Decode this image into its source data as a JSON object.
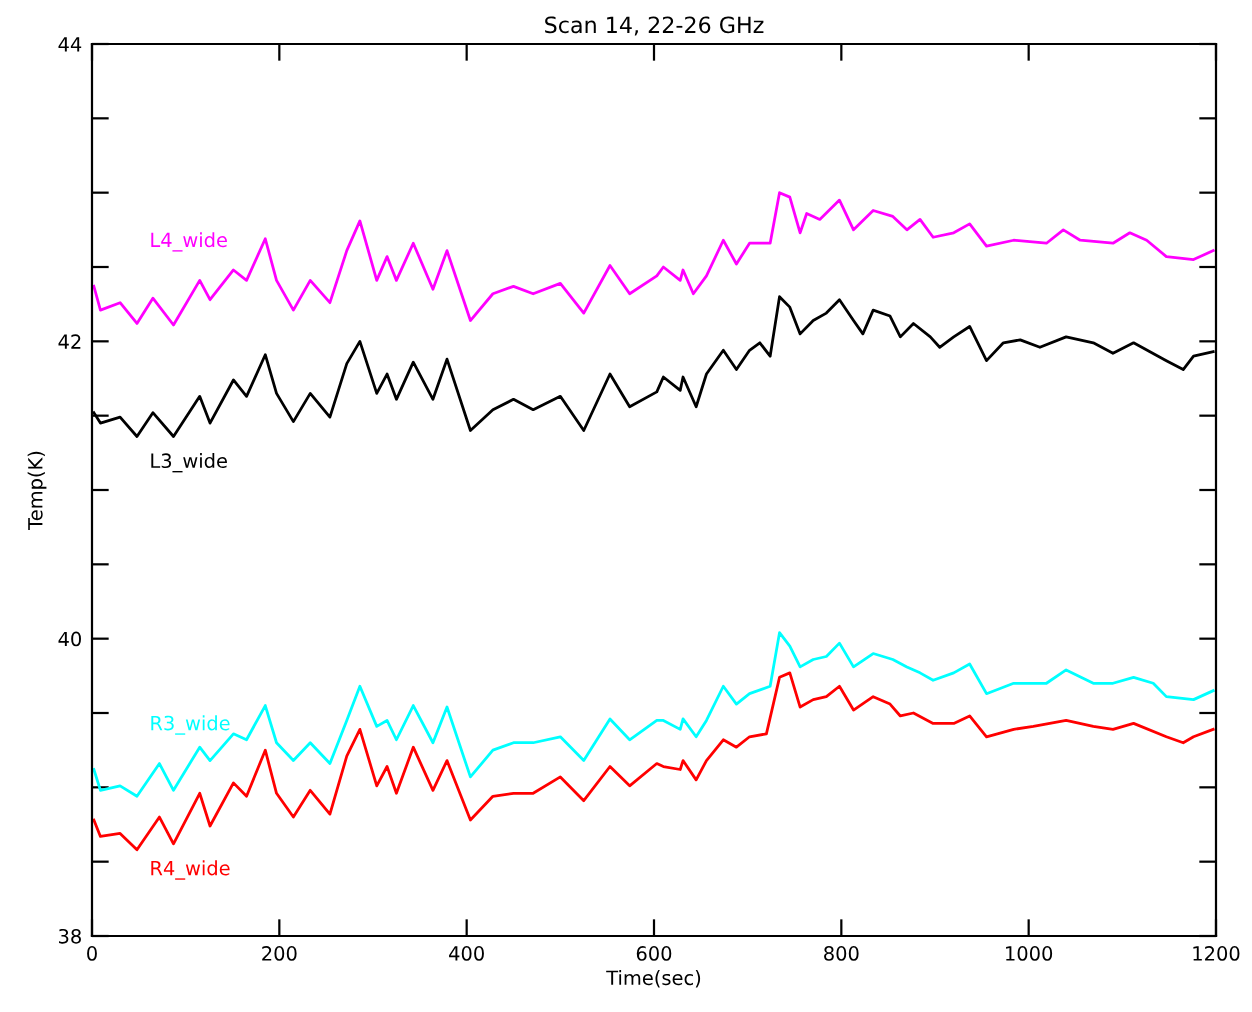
{
  "chart_data": {
    "type": "line",
    "title": "Scan 14, 22-26 GHz",
    "xlabel": "Time(sec)",
    "ylabel": "Temp(K)",
    "xlim": [
      0,
      1200
    ],
    "xticks": [
      0,
      200,
      400,
      600,
      800,
      1000,
      1200
    ],
    "ylim": [
      38,
      44
    ],
    "yticks": [
      38,
      {
        "value": 38.5,
        "label": null
      },
      {
        "value": 39,
        "label": null
      },
      {
        "value": 39.5,
        "label": null
      },
      40,
      {
        "value": 40.5,
        "label": null
      },
      {
        "value": 41,
        "label": null
      },
      {
        "value": 41.5,
        "label": null
      },
      42,
      {
        "value": 42.5,
        "label": null
      },
      {
        "value": 43,
        "label": null
      },
      {
        "value": 43.5,
        "label": null
      },
      44
    ],
    "grid": false,
    "legend": false,
    "marker": "none",
    "line_style": "solid",
    "series": [
      {
        "name": "L4_wide",
        "color": "#ff00ff",
        "x": [
          2,
          9,
          30,
          48,
          65,
          87,
          115,
          126,
          151,
          165,
          185,
          197,
          215,
          233,
          254,
          272,
          286,
          304,
          315,
          325,
          343,
          364,
          379,
          404,
          428,
          450,
          471,
          500,
          525,
          553,
          574,
          603,
          610,
          628,
          631,
          642,
          656,
          674,
          688,
          702,
          724,
          734,
          745,
          756,
          763,
          777,
          798,
          813,
          834,
          855,
          870,
          884,
          898,
          920,
          937,
          955,
          984,
          1019,
          1037,
          1055,
          1090,
          1108,
          1126,
          1147,
          1176,
          1197
        ],
        "values": [
          42.37,
          42.21,
          42.26,
          42.12,
          42.29,
          42.11,
          42.41,
          42.28,
          42.48,
          42.41,
          42.69,
          42.41,
          42.21,
          42.41,
          42.26,
          42.61,
          42.81,
          42.41,
          42.57,
          42.41,
          42.66,
          42.35,
          42.61,
          42.14,
          42.32,
          42.37,
          42.32,
          42.39,
          42.19,
          42.51,
          42.32,
          42.44,
          42.5,
          42.41,
          42.48,
          42.32,
          42.44,
          42.68,
          42.52,
          42.66,
          42.66,
          43.0,
          42.97,
          42.73,
          42.86,
          42.82,
          42.95,
          42.75,
          42.88,
          42.84,
          42.75,
          42.82,
          42.7,
          42.73,
          42.79,
          42.64,
          42.68,
          42.66,
          42.75,
          42.68,
          42.66,
          42.73,
          42.68,
          42.57,
          42.55,
          42.61
        ]
      },
      {
        "name": "L3_wide",
        "color": "#000000",
        "x": [
          2,
          9,
          30,
          48,
          65,
          87,
          115,
          126,
          151,
          165,
          185,
          197,
          215,
          233,
          254,
          272,
          286,
          304,
          315,
          325,
          343,
          364,
          379,
          404,
          428,
          450,
          471,
          500,
          525,
          553,
          574,
          603,
          610,
          628,
          631,
          645,
          656,
          674,
          688,
          702,
          713,
          724,
          734,
          745,
          756,
          770,
          784,
          798,
          813,
          823,
          834,
          852,
          863,
          877,
          895,
          905,
          920,
          937,
          955,
          973,
          991,
          1012,
          1040,
          1069,
          1090,
          1112,
          1147,
          1165,
          1176,
          1197
        ],
        "values": [
          41.52,
          41.45,
          41.49,
          41.36,
          41.52,
          41.36,
          41.63,
          41.45,
          41.74,
          41.63,
          41.91,
          41.65,
          41.46,
          41.65,
          41.49,
          41.85,
          42.0,
          41.65,
          41.78,
          41.61,
          41.86,
          41.61,
          41.88,
          41.4,
          41.54,
          41.61,
          41.54,
          41.63,
          41.4,
          41.78,
          41.56,
          41.66,
          41.76,
          41.67,
          41.76,
          41.56,
          41.78,
          41.94,
          41.81,
          41.94,
          41.99,
          41.9,
          42.3,
          42.23,
          42.05,
          42.14,
          42.19,
          42.28,
          42.14,
          42.05,
          42.21,
          42.17,
          42.03,
          42.12,
          42.03,
          41.96,
          42.03,
          42.1,
          41.87,
          41.99,
          42.01,
          41.96,
          42.03,
          41.99,
          41.92,
          41.99,
          41.87,
          41.81,
          41.9,
          41.93
        ]
      },
      {
        "name": "R3_wide",
        "color": "#00ffff",
        "x": [
          2,
          9,
          30,
          48,
          72,
          87,
          115,
          126,
          151,
          165,
          185,
          197,
          215,
          233,
          254,
          272,
          286,
          304,
          315,
          325,
          343,
          364,
          379,
          404,
          428,
          450,
          471,
          500,
          525,
          553,
          574,
          603,
          610,
          628,
          631,
          645,
          656,
          674,
          688,
          702,
          724,
          734,
          745,
          756,
          770,
          784,
          798,
          813,
          834,
          855,
          870,
          884,
          898,
          920,
          937,
          955,
          984,
          1019,
          1040,
          1069,
          1090,
          1112,
          1133,
          1147,
          1176,
          1197
        ],
        "values": [
          39.12,
          38.98,
          39.01,
          38.94,
          39.16,
          38.98,
          39.27,
          39.18,
          39.36,
          39.32,
          39.55,
          39.3,
          39.18,
          39.3,
          39.16,
          39.45,
          39.68,
          39.41,
          39.45,
          39.32,
          39.55,
          39.3,
          39.54,
          39.07,
          39.25,
          39.3,
          39.3,
          39.34,
          39.18,
          39.46,
          39.32,
          39.45,
          39.45,
          39.39,
          39.46,
          39.34,
          39.45,
          39.68,
          39.56,
          39.63,
          39.68,
          40.04,
          39.95,
          39.81,
          39.86,
          39.88,
          39.97,
          39.81,
          39.9,
          39.86,
          39.81,
          39.77,
          39.72,
          39.77,
          39.83,
          39.63,
          39.7,
          39.7,
          39.79,
          39.7,
          39.7,
          39.74,
          39.7,
          39.61,
          39.59,
          39.65
        ]
      },
      {
        "name": "R4_wide",
        "color": "#ff0000",
        "x": [
          2,
          9,
          30,
          48,
          72,
          87,
          115,
          126,
          151,
          165,
          185,
          197,
          215,
          233,
          254,
          272,
          286,
          304,
          315,
          325,
          343,
          364,
          379,
          404,
          428,
          450,
          471,
          500,
          525,
          553,
          574,
          603,
          610,
          628,
          631,
          645,
          656,
          674,
          688,
          702,
          720,
          734,
          745,
          756,
          770,
          784,
          798,
          813,
          834,
          852,
          863,
          877,
          898,
          920,
          937,
          955,
          984,
          1005,
          1040,
          1069,
          1090,
          1112,
          1147,
          1165,
          1176,
          1197
        ],
        "values": [
          38.78,
          38.67,
          38.69,
          38.58,
          38.8,
          38.62,
          38.96,
          38.74,
          39.03,
          38.94,
          39.25,
          38.96,
          38.8,
          38.98,
          38.82,
          39.21,
          39.39,
          39.01,
          39.14,
          38.96,
          39.27,
          38.98,
          39.18,
          38.78,
          38.94,
          38.96,
          38.96,
          39.07,
          38.91,
          39.14,
          39.01,
          39.16,
          39.14,
          39.12,
          39.18,
          39.05,
          39.18,
          39.32,
          39.27,
          39.34,
          39.36,
          39.74,
          39.77,
          39.54,
          39.59,
          39.61,
          39.68,
          39.52,
          39.61,
          39.56,
          39.48,
          39.5,
          39.43,
          39.43,
          39.48,
          39.34,
          39.39,
          39.41,
          39.45,
          39.41,
          39.39,
          39.43,
          39.34,
          39.3,
          39.34,
          39.39
        ]
      }
    ]
  }
}
